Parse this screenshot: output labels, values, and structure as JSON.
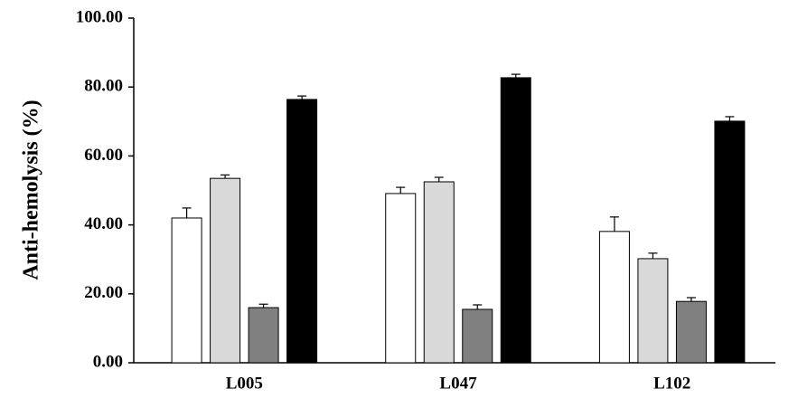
{
  "chart_data": {
    "type": "bar",
    "y_label": "Anti-hemolysis (%)",
    "categories": [
      "L005",
      "L047",
      "L102"
    ],
    "series": [
      {
        "color": "#ffffff",
        "values": [
          42.0,
          49.1,
          38.1
        ],
        "errors": [
          2.9,
          1.8,
          4.2
        ]
      },
      {
        "color": "#d9d9d9",
        "values": [
          53.5,
          52.5,
          30.2
        ],
        "errors": [
          1.0,
          1.3,
          1.6
        ]
      },
      {
        "color": "#808080",
        "values": [
          16.0,
          15.5,
          17.8
        ],
        "errors": [
          1.0,
          1.3,
          1.1
        ]
      },
      {
        "color": "#000000",
        "values": [
          76.4,
          82.7,
          70.1
        ],
        "errors": [
          1.0,
          1.0,
          1.3
        ]
      }
    ],
    "ylim": [
      0,
      100
    ],
    "yticks": [
      {
        "value": 0,
        "label": "0.00"
      },
      {
        "value": 20,
        "label": "20.00"
      },
      {
        "value": 40,
        "label": "40.00"
      },
      {
        "value": 60,
        "label": "60.00"
      },
      {
        "value": 80,
        "label": "80.00"
      },
      {
        "value": 100,
        "label": "100.00"
      }
    ],
    "grid": false
  }
}
